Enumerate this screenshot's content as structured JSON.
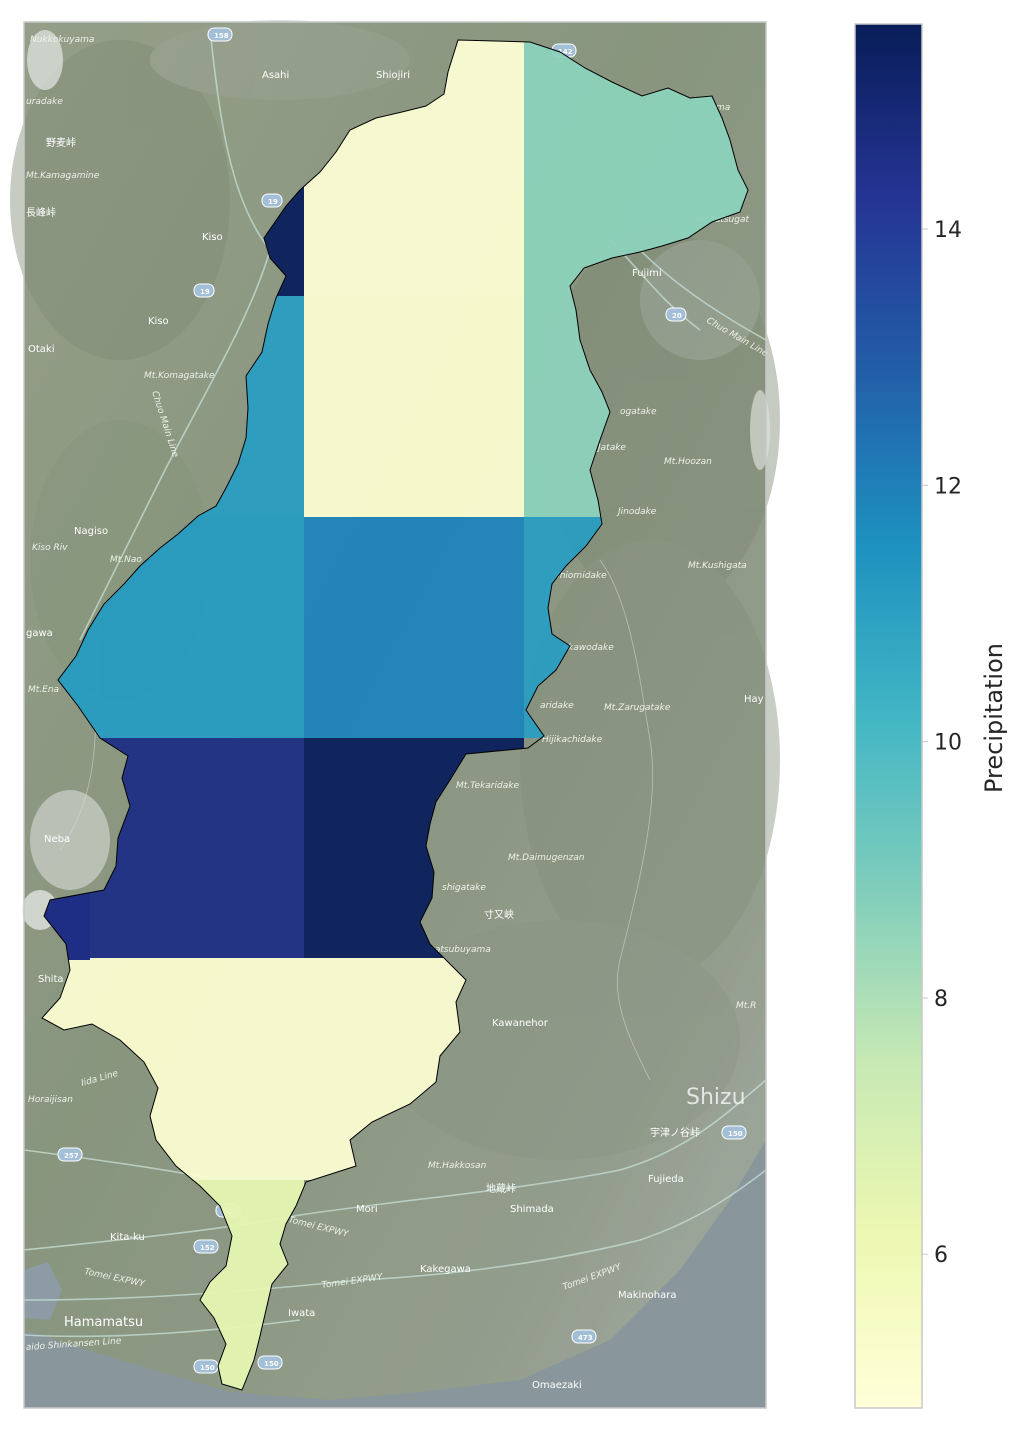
{
  "colorbar": {
    "label": "Precipitation",
    "min": 4.8,
    "max": 15.6,
    "ticks": [
      "6",
      "8",
      "10",
      "12",
      "14"
    ],
    "tick_values": [
      6,
      8,
      10,
      12,
      14
    ],
    "colormap": "YlGnBu"
  },
  "grid_cells": [
    {
      "row": 0,
      "col": 0,
      "value": 15.5
    },
    {
      "row": 0,
      "col": 1,
      "value": 5.0
    },
    {
      "row": 0,
      "col": 2,
      "value": 8.6
    },
    {
      "row": 1,
      "col": 0,
      "value": 11.1
    },
    {
      "row": 1,
      "col": 1,
      "value": 5.1
    },
    {
      "row": 1,
      "col": 2,
      "value": 8.6
    },
    {
      "row": 2,
      "col": 0,
      "value": 11.2
    },
    {
      "row": 2,
      "col": 1,
      "value": 11.9
    },
    {
      "row": 2,
      "col": 2,
      "value": 11.1
    },
    {
      "row": 3,
      "col": 0,
      "value": 14.6
    },
    {
      "row": 3,
      "col": 1,
      "value": 15.5
    },
    {
      "row": 4,
      "col": 0,
      "value": 5.1
    },
    {
      "row": 4,
      "col": 1,
      "value": 5.1
    },
    {
      "row": 5,
      "col": 0,
      "value": 6.4
    }
  ],
  "map_labels": [
    {
      "name": "label-nukkokuyama",
      "text": "Nukkokuyama"
    },
    {
      "name": "label-asahi",
      "text": "Asahi"
    },
    {
      "name": "label-shiojiri",
      "text": "Shiojiri"
    },
    {
      "name": "label-uradake",
      "text": "uradake"
    },
    {
      "name": "label-nomugi-pass",
      "text": "野麦峠"
    },
    {
      "name": "label-mt-kamagamine",
      "text": "Mt.Kamagamine"
    },
    {
      "name": "label-pass-left",
      "text": "長峰峠"
    },
    {
      "name": "label-kiso-1",
      "text": "Kiso"
    },
    {
      "name": "label-kiso-2",
      "text": "Kiso"
    },
    {
      "name": "label-otaki",
      "text": "Otaki"
    },
    {
      "name": "label-mt-komagatake",
      "text": "Mt.Komagatake"
    },
    {
      "name": "label-chuo-main-line-1",
      "text": "Chuo Main Line"
    },
    {
      "name": "label-fujimi",
      "text": "Fujimi"
    },
    {
      "name": "label-chuo-main-line-2",
      "text": "Chuo Main Line"
    },
    {
      "name": "label-mt-yatsugatake",
      "text": "Mt.Yatsugat"
    },
    {
      "name": "label-ma",
      "text": "ma"
    },
    {
      "name": "label-nagatake",
      "text": "ogatake"
    },
    {
      "name": "label-jotake",
      "text": "Jatake"
    },
    {
      "name": "label-mt-hoozan",
      "text": "Mt.Hoozan"
    },
    {
      "name": "label-jinodake",
      "text": "Jinodake"
    },
    {
      "name": "label-nagiso",
      "text": "Nagiso"
    },
    {
      "name": "label-kiso-riv",
      "text": "Kiso Riv"
    },
    {
      "name": "label-mt-naoi",
      "text": "Mt.Nao"
    },
    {
      "name": "label-shiomidake",
      "text": "Shiomidake"
    },
    {
      "name": "label-mt-kushigata",
      "text": "Mt.Kushigata"
    },
    {
      "name": "label-gawa",
      "text": "gawa"
    },
    {
      "name": "label-akawodake",
      "text": "Akawodake"
    },
    {
      "name": "label-mt-ena",
      "text": "Mt.Ena"
    },
    {
      "name": "label-aridake",
      "text": "aridake"
    },
    {
      "name": "label-mt-zarugatake",
      "text": "Mt.Zarugatake"
    },
    {
      "name": "label-hay",
      "text": "Hay"
    },
    {
      "name": "label-hijikachidake",
      "text": "Hijikachidake"
    },
    {
      "name": "label-mt-tekaridake",
      "text": "Mt.Tekaridake"
    },
    {
      "name": "label-neba",
      "text": "Neba"
    },
    {
      "name": "label-mt-daimugenzan",
      "text": "Mt.Daimugenzan"
    },
    {
      "name": "label-shigatake",
      "text": "shigatake"
    },
    {
      "name": "label-sumatakyo",
      "text": "寸又峡"
    },
    {
      "name": "label-tsubuyama",
      "text": "Asatsubuyama"
    },
    {
      "name": "label-shita",
      "text": "Shita"
    },
    {
      "name": "label-kawanehon",
      "text": "Kawanehor"
    },
    {
      "name": "label-mt-r",
      "text": "Mt.R"
    },
    {
      "name": "label-iida-line",
      "text": "Iida Line"
    },
    {
      "name": "label-horaijisan",
      "text": "Horaijisan"
    },
    {
      "name": "label-shizuoka",
      "text": "Shizu"
    },
    {
      "name": "label-utsunoya-pass",
      "text": "宇津ノ谷峠"
    },
    {
      "name": "label-mt-hakkosan",
      "text": "Mt.Hakkosan"
    },
    {
      "name": "label-jizo-pass",
      "text": "地蔵峠"
    },
    {
      "name": "label-fujieda",
      "text": "Fujieda"
    },
    {
      "name": "label-mori",
      "text": "Mori"
    },
    {
      "name": "label-shimada",
      "text": "Shimada"
    },
    {
      "name": "label-kita-ku",
      "text": "Kita-ku"
    },
    {
      "name": "label-tomei-expwy-1",
      "text": "Tomei EXPWY"
    },
    {
      "name": "label-tomei-expwy-2",
      "text": "Tomei EXPWY"
    },
    {
      "name": "label-tomei-expwy-3",
      "text": "Tomei EXPWY"
    },
    {
      "name": "label-tomei-expwy-4",
      "text": "Tomei EXPWY"
    },
    {
      "name": "label-kakegawa",
      "text": "Kakegawa"
    },
    {
      "name": "label-makinohara",
      "text": "Makinohara"
    },
    {
      "name": "label-hamamatsu",
      "text": "Hamamatsu"
    },
    {
      "name": "label-iwata",
      "text": "Iwata"
    },
    {
      "name": "label-shinkansen",
      "text": "aido Shinkansen Line"
    },
    {
      "name": "label-omaezaki",
      "text": "Omaezaki"
    }
  ],
  "route_shields": [
    "158",
    "142",
    "19",
    "19",
    "20",
    "257",
    "362",
    "152",
    "150",
    "150",
    "150",
    "473"
  ]
}
